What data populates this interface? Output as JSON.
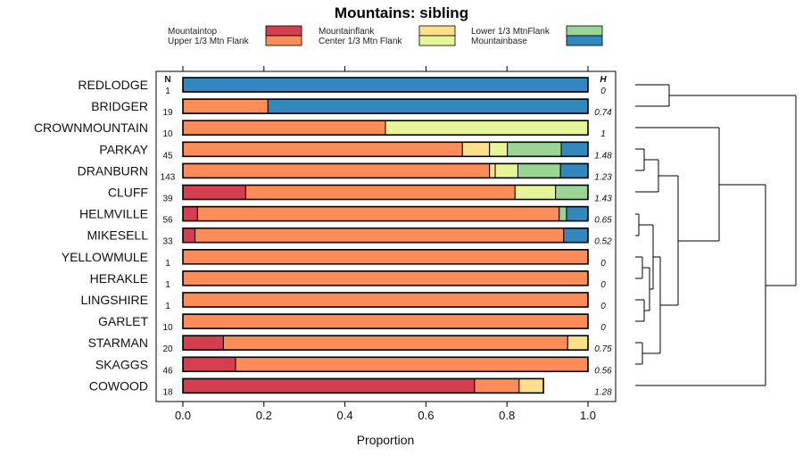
{
  "chart_data": {
    "type": "bar",
    "stacked": true,
    "orientation": "horizontal",
    "title": "Mountains: sibling",
    "xlabel": "Proportion",
    "xlim": [
      0,
      1
    ],
    "xticks": [
      "0.0",
      "0.2",
      "0.4",
      "0.6",
      "0.8",
      "1.0"
    ],
    "n_header": "N",
    "h_header": "H",
    "legend": [
      {
        "name": "Mountaintop",
        "color": "#D53E4F"
      },
      {
        "name": "Upper 1/3 Mtn Flank",
        "color": "#FC8D59"
      },
      {
        "name": "Mountainflank",
        "color": "#FEE08B"
      },
      {
        "name": "Center 1/3 Mtn Flank",
        "color": "#E6F598"
      },
      {
        "name": "Lower 1/3 MtnFlank",
        "color": "#99D594"
      },
      {
        "name": "Mountainbase",
        "color": "#3288BD"
      }
    ],
    "categories": [
      "REDLODGE",
      "BRIDGER",
      "CROWNMOUNTAIN",
      "PARKAY",
      "DRANBURN",
      "CLUFF",
      "HELMVILLE",
      "MIKESELL",
      "YELLOWMULE",
      "HERAKLE",
      "LINGSHIRE",
      "GARLET",
      "STARMAN",
      "SKAGGS",
      "COWOOD"
    ],
    "n": [
      "1",
      "19",
      "10",
      "45",
      "143",
      "39",
      "56",
      "33",
      "1",
      "1",
      "1",
      "10",
      "20",
      "46",
      "18"
    ],
    "h": [
      "0",
      "0.74",
      "1",
      "1.48",
      "1.23",
      "1.43",
      "0.65",
      "0.52",
      "0",
      "0",
      "0",
      "0",
      "0.75",
      "0.56",
      "1.28"
    ],
    "series": [
      {
        "name": "Mountaintop",
        "values": [
          0,
          0,
          0,
          0,
          0,
          0.155,
          0.036,
          0.03,
          0,
          0,
          0,
          0,
          0.1,
          0.13,
          0.72
        ]
      },
      {
        "name": "Upper 1/3 Mtn Flank",
        "values": [
          0,
          0.21,
          0.5,
          0.69,
          0.757,
          0.665,
          0.893,
          0.91,
          1,
          1,
          1,
          1,
          0.85,
          0.87,
          0.11
        ]
      },
      {
        "name": "Mountainflank",
        "values": [
          0,
          0,
          0,
          0.067,
          0.014,
          0,
          0,
          0,
          0,
          0,
          0,
          0,
          0.05,
          0,
          0.06
        ]
      },
      {
        "name": "Center 1/3 Mtn Flank",
        "values": [
          0,
          0,
          0.5,
          0.044,
          0.056,
          0.1,
          0,
          0,
          0,
          0,
          0,
          0,
          0,
          0,
          0
        ]
      },
      {
        "name": "Lower 1/3 MtnFlank",
        "values": [
          0,
          0,
          0,
          0.133,
          0.105,
          0.08,
          0.018,
          0,
          0,
          0,
          0,
          0,
          0,
          0,
          0
        ]
      },
      {
        "name": "Mountainbase",
        "values": [
          1,
          0.79,
          0,
          0.066,
          0.068,
          0,
          0.053,
          0.06,
          0,
          0,
          0,
          0,
          0,
          0,
          0
        ]
      }
    ]
  }
}
